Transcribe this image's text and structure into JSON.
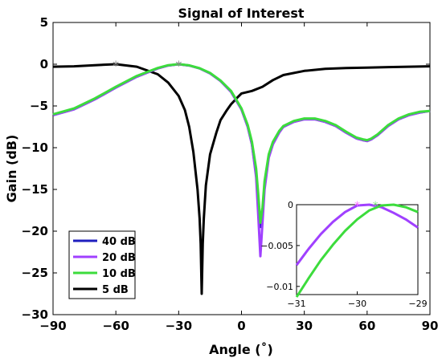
{
  "chart_data": {
    "type": "line",
    "title": "Signal of Interest",
    "xlabel": "Angle (˚)",
    "ylabel": "Gain (dB)",
    "xlim": [
      -90,
      90
    ],
    "ylim": [
      -30,
      5
    ],
    "xticks": [
      -90,
      -60,
      -30,
      0,
      30,
      60,
      90
    ],
    "yticks": [
      5,
      0,
      -5,
      -10,
      -15,
      -20,
      -25,
      -30
    ],
    "grid": false,
    "legend_position": "bottom-left",
    "series": [
      {
        "name": "40 dB",
        "color": "#1f1fbf",
        "x": [
          -90,
          -80,
          -70,
          -60,
          -50,
          -40,
          -35,
          -30,
          -25,
          -20,
          -15,
          -10,
          -5,
          0,
          3,
          5,
          7,
          8,
          9,
          10,
          11,
          13,
          15,
          18,
          20,
          25,
          30,
          35,
          40,
          45,
          50,
          55,
          58,
          60,
          62,
          65,
          70,
          75,
          80,
          85,
          90
        ],
        "y": [
          -6.1,
          -5.4,
          -4.2,
          -2.8,
          -1.5,
          -0.5,
          -0.15,
          0,
          -0.15,
          -0.5,
          -1.1,
          -2,
          -3.3,
          -5.4,
          -7.5,
          -9.6,
          -13.2,
          -16.5,
          -19.5,
          -18,
          -14.6,
          -11,
          -9.5,
          -8.1,
          -7.5,
          -6.9,
          -6.6,
          -6.6,
          -6.9,
          -7.4,
          -8.2,
          -8.9,
          -9.1,
          -9.2,
          -9.0,
          -8.5,
          -7.4,
          -6.6,
          -6.1,
          -5.8,
          -5.6
        ]
      },
      {
        "name": "20 dB",
        "color": "#a040ff",
        "x": [
          -90,
          -80,
          -70,
          -60,
          -50,
          -40,
          -35,
          -30,
          -25,
          -20,
          -15,
          -10,
          -5,
          0,
          3,
          5,
          7,
          8,
          9,
          10,
          11,
          13,
          15,
          18,
          20,
          25,
          30,
          35,
          40,
          45,
          50,
          55,
          58,
          60,
          62,
          65,
          70,
          75,
          80,
          85,
          90
        ],
        "y": [
          -6.1,
          -5.4,
          -4.2,
          -2.8,
          -1.5,
          -0.5,
          -0.15,
          0,
          -0.15,
          -0.5,
          -1.1,
          -2,
          -3.3,
          -5.4,
          -7.5,
          -9.6,
          -13.5,
          -18,
          -23,
          -19,
          -15,
          -11.2,
          -9.6,
          -8.2,
          -7.5,
          -6.9,
          -6.6,
          -6.6,
          -6.9,
          -7.4,
          -8.2,
          -8.9,
          -9.1,
          -9.2,
          -9.0,
          -8.5,
          -7.4,
          -6.6,
          -6.1,
          -5.8,
          -5.6
        ]
      },
      {
        "name": "10 dB",
        "color": "#3cdc3c",
        "x": [
          -90,
          -80,
          -70,
          -60,
          -50,
          -40,
          -35,
          -30,
          -25,
          -20,
          -15,
          -10,
          -5,
          0,
          3,
          5,
          7,
          8,
          9,
          10,
          11,
          13,
          15,
          18,
          20,
          25,
          30,
          35,
          40,
          45,
          50,
          55,
          58,
          60,
          62,
          65,
          70,
          75,
          80,
          85,
          90
        ],
        "y": [
          -6.0,
          -5.3,
          -4.1,
          -2.7,
          -1.4,
          -0.45,
          -0.12,
          0,
          -0.13,
          -0.48,
          -1.05,
          -1.95,
          -3.2,
          -5.3,
          -7.3,
          -9.3,
          -12.5,
          -15.5,
          -19.0,
          -17.2,
          -14.0,
          -10.8,
          -9.3,
          -8.0,
          -7.4,
          -6.8,
          -6.5,
          -6.5,
          -6.8,
          -7.3,
          -8.1,
          -8.8,
          -9.0,
          -9.1,
          -8.9,
          -8.4,
          -7.3,
          -6.5,
          -6.0,
          -5.7,
          -5.6
        ]
      },
      {
        "name": "5 dB",
        "color": "#000000",
        "x": [
          -90,
          -80,
          -70,
          -60,
          -50,
          -40,
          -35,
          -30,
          -27,
          -25,
          -23,
          -21,
          -20,
          -19.5,
          -19,
          -18.5,
          -18,
          -17,
          -15,
          -12,
          -10,
          -7,
          -5,
          -2,
          0,
          5,
          10,
          15,
          20,
          30,
          40,
          50,
          60,
          70,
          80,
          90
        ],
        "y": [
          -0.3,
          -0.25,
          -0.12,
          0,
          -0.3,
          -1.2,
          -2.2,
          -3.8,
          -5.5,
          -7.5,
          -10.5,
          -15,
          -18.5,
          -21.5,
          -27.5,
          -21.5,
          -18.5,
          -14.5,
          -10.8,
          -8.2,
          -6.7,
          -5.5,
          -4.8,
          -4.0,
          -3.5,
          -3.2,
          -2.7,
          -1.9,
          -1.3,
          -0.8,
          -0.55,
          -0.45,
          -0.4,
          -0.35,
          -0.3,
          -0.25
        ]
      }
    ],
    "markers": [
      {
        "x": -60,
        "y": 0,
        "symbol": "*",
        "color": "#888888"
      },
      {
        "x": -30,
        "y": 0,
        "symbol": "*",
        "color": "#888888"
      }
    ],
    "inset": {
      "xlim": [
        -31,
        -29
      ],
      "ylim": [
        -0.011,
        0
      ],
      "xticks": [
        -31,
        -30,
        -29
      ],
      "yticks": [
        0,
        -0.005,
        -0.01
      ],
      "series": [
        {
          "ref": "20 dB",
          "color": "#a040ff",
          "x": [
            -31,
            -30.8,
            -30.6,
            -30.4,
            -30.2,
            -30,
            -29.8,
            -29.6,
            -29.4,
            -29.2,
            -29
          ],
          "y": [
            -0.0074,
            -0.0054,
            -0.0036,
            -0.0021,
            -0.0009,
            -0.0001,
            0,
            -0.0003,
            -0.001,
            -0.0018,
            -0.0028
          ]
        },
        {
          "ref": "10 dB",
          "color": "#3cdc3c",
          "x": [
            -31,
            -30.8,
            -30.6,
            -30.4,
            -30.2,
            -30,
            -29.8,
            -29.6,
            -29.4,
            -29.2,
            -29
          ],
          "y": [
            -0.0113,
            -0.009,
            -0.0068,
            -0.0049,
            -0.0032,
            -0.0018,
            -0.0007,
            -0.0001,
            0,
            -0.0003,
            -0.0009
          ]
        }
      ],
      "markers": [
        {
          "x": -30,
          "y": 0,
          "symbol": "*",
          "color": "#ff77ff"
        },
        {
          "x": -29.7,
          "y": 0,
          "symbol": "*",
          "color": "#88ee88"
        }
      ]
    }
  }
}
